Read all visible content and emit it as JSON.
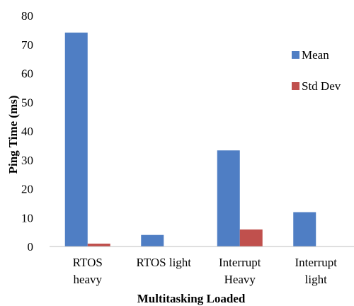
{
  "chart_data": {
    "type": "bar",
    "title": "",
    "xlabel": "Multitasking Loaded",
    "ylabel": "Ping Time (ms)",
    "categories": [
      [
        "RTOS",
        "heavy"
      ],
      [
        "RTOS light"
      ],
      [
        "Interrupt",
        "Heavy"
      ],
      [
        "Interrupt",
        "light"
      ]
    ],
    "series": [
      {
        "name": "Mean",
        "color": "#4f7ec4",
        "values": [
          74.1,
          4.0,
          33.3,
          11.9
        ]
      },
      {
        "name": "Std Dev",
        "color": "#c0504d",
        "values": [
          1.0,
          0.0,
          5.9,
          0.0
        ]
      }
    ],
    "ylim": [
      0,
      80
    ],
    "yticks": [
      0,
      10,
      20,
      30,
      40,
      50,
      60,
      70,
      80
    ],
    "grid": false,
    "legend": "right"
  }
}
